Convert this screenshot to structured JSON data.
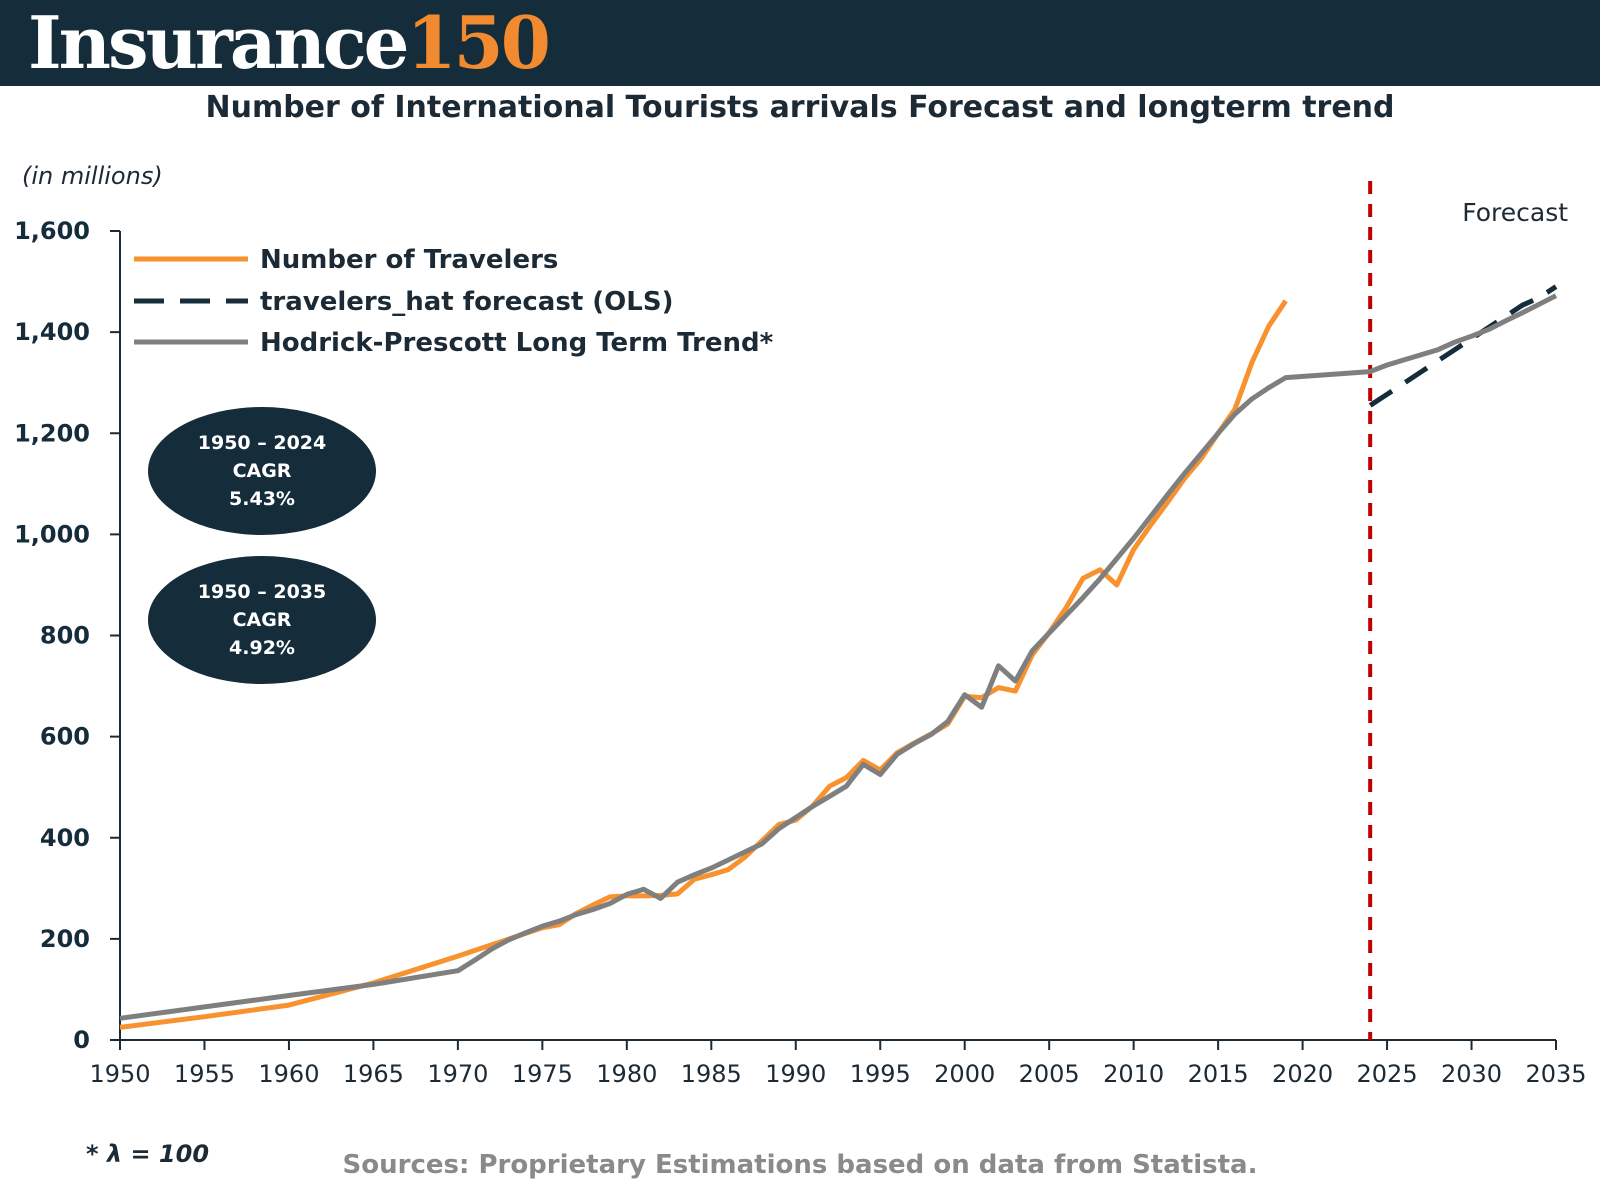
{
  "header": {
    "brand_word": "Insurance",
    "brand_number": "150"
  },
  "unit_label": "(in millions)",
  "cagr_boxes": [
    {
      "period": "1950 – 2024",
      "label": "CAGR",
      "value": "5.43%"
    },
    {
      "period": "1950 – 2035",
      "label": "CAGR",
      "value": "4.92%"
    }
  ],
  "footnote": "* λ = 100",
  "sources": "Sources: Proprietary Estimations based on data from Statista.",
  "colors": {
    "header": "#152c3a",
    "travelers": "#f7922e",
    "forecast": "#152c3a",
    "trend": "#7f7f7f",
    "forecast_line": "#c00000"
  },
  "chart_data": {
    "type": "line",
    "title": "Number of International Tourists arrivals Forecast and longterm trend",
    "ylabel": "(in millions)",
    "xlim": [
      1950,
      2035
    ],
    "ylim": [
      0,
      1600
    ],
    "x_ticks": [
      1950,
      1955,
      1960,
      1965,
      1970,
      1975,
      1980,
      1985,
      1990,
      1995,
      2000,
      2005,
      2010,
      2015,
      2020,
      2025,
      2030,
      2035
    ],
    "y_ticks": [
      0,
      200,
      400,
      600,
      800,
      1000,
      1200,
      1400,
      1600
    ],
    "y_tick_labels": [
      "0",
      "200",
      "400",
      "600",
      "800",
      "1,000",
      "1,200",
      "1,400",
      "1,600"
    ],
    "grid": false,
    "legend_position": "top-left",
    "forecast_start": 2024,
    "forecast_label": "Forecast",
    "series": [
      {
        "name": "Number of Travelers",
        "style": "solid",
        "points": [
          [
            1950,
            25
          ],
          [
            1955,
            46
          ],
          [
            1960,
            69
          ],
          [
            1965,
            113
          ],
          [
            1970,
            166
          ],
          [
            1975,
            222
          ],
          [
            1976,
            228
          ],
          [
            1977,
            250
          ],
          [
            1978,
            267
          ],
          [
            1979,
            283
          ],
          [
            1980,
            285
          ],
          [
            1981,
            285
          ],
          [
            1982,
            286
          ],
          [
            1983,
            289
          ],
          [
            1984,
            318
          ],
          [
            1985,
            327
          ],
          [
            1986,
            337
          ],
          [
            1987,
            362
          ],
          [
            1988,
            394
          ],
          [
            1989,
            426
          ],
          [
            1990,
            435
          ],
          [
            1991,
            463
          ],
          [
            1992,
            502
          ],
          [
            1993,
            519
          ],
          [
            1994,
            553
          ],
          [
            1995,
            534
          ],
          [
            1996,
            568
          ],
          [
            1997,
            587
          ],
          [
            1998,
            605
          ],
          [
            1999,
            625
          ],
          [
            2000,
            680
          ],
          [
            2001,
            677
          ],
          [
            2002,
            697
          ],
          [
            2003,
            690
          ],
          [
            2004,
            762
          ],
          [
            2005,
            806
          ],
          [
            2006,
            855
          ],
          [
            2007,
            913
          ],
          [
            2008,
            930
          ],
          [
            2009,
            900
          ],
          [
            2010,
            970
          ],
          [
            2011,
            1018
          ],
          [
            2012,
            1063
          ],
          [
            2013,
            1110
          ],
          [
            2014,
            1150
          ],
          [
            2015,
            1200
          ],
          [
            2016,
            1248
          ],
          [
            2017,
            1340
          ],
          [
            2018,
            1412
          ],
          [
            2019,
            1462
          ]
        ]
      },
      {
        "name": "travelers_hat forecast (OLS)",
        "style": "dashed",
        "points": [
          [
            2024,
            1255
          ],
          [
            2025,
            1277
          ],
          [
            2026,
            1299
          ],
          [
            2027,
            1321
          ],
          [
            2028,
            1343
          ],
          [
            2029,
            1365
          ],
          [
            2030,
            1387
          ],
          [
            2031,
            1409
          ],
          [
            2032,
            1431
          ],
          [
            2033,
            1453
          ],
          [
            2034,
            1468
          ],
          [
            2035,
            1490
          ]
        ]
      },
      {
        "name": "Hodrick-Prescott Long Term Trend*",
        "style": "solid",
        "points": [
          [
            1950,
            43
          ],
          [
            1960,
            88
          ],
          [
            1965,
            110
          ],
          [
            1970,
            137
          ],
          [
            1971,
            158
          ],
          [
            1972,
            180
          ],
          [
            1973,
            198
          ],
          [
            1974,
            212
          ],
          [
            1975,
            225
          ],
          [
            1976,
            235
          ],
          [
            1977,
            248
          ],
          [
            1978,
            258
          ],
          [
            1979,
            270
          ],
          [
            1980,
            288
          ],
          [
            1981,
            298
          ],
          [
            1982,
            280
          ],
          [
            1983,
            312
          ],
          [
            1984,
            327
          ],
          [
            1985,
            340
          ],
          [
            1986,
            356
          ],
          [
            1987,
            372
          ],
          [
            1988,
            388
          ],
          [
            1989,
            418
          ],
          [
            1990,
            440
          ],
          [
            1991,
            462
          ],
          [
            1992,
            482
          ],
          [
            1993,
            502
          ],
          [
            1994,
            545
          ],
          [
            1995,
            525
          ],
          [
            1996,
            565
          ],
          [
            1997,
            586
          ],
          [
            1998,
            604
          ],
          [
            1999,
            630
          ],
          [
            2000,
            683
          ],
          [
            2001,
            658
          ],
          [
            2002,
            740
          ],
          [
            2003,
            710
          ],
          [
            2004,
            770
          ],
          [
            2005,
            805
          ],
          [
            2006,
            840
          ],
          [
            2007,
            875
          ],
          [
            2008,
            912
          ],
          [
            2009,
            952
          ],
          [
            2010,
            992
          ],
          [
            2011,
            1035
          ],
          [
            2012,
            1078
          ],
          [
            2013,
            1120
          ],
          [
            2014,
            1160
          ],
          [
            2015,
            1200
          ],
          [
            2016,
            1238
          ],
          [
            2017,
            1268
          ],
          [
            2018,
            1290
          ],
          [
            2019,
            1310
          ],
          [
            2024,
            1322
          ],
          [
            2025,
            1335
          ],
          [
            2026,
            1345
          ],
          [
            2027,
            1355
          ],
          [
            2028,
            1365
          ],
          [
            2029,
            1380
          ],
          [
            2030,
            1392
          ],
          [
            2031,
            1405
          ],
          [
            2032,
            1422
          ],
          [
            2033,
            1438
          ],
          [
            2034,
            1455
          ],
          [
            2035,
            1472
          ]
        ]
      }
    ]
  }
}
